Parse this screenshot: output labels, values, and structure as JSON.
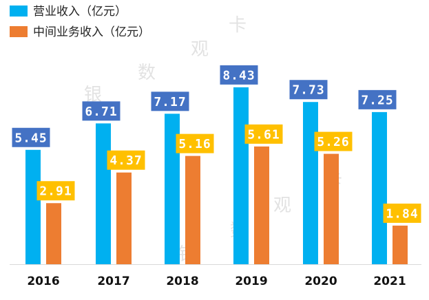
{
  "chart_data": {
    "type": "bar",
    "title": "",
    "xlabel": "",
    "ylabel": "",
    "ylim": [
      0,
      10
    ],
    "categories": [
      "2016",
      "2017",
      "2018",
      "2019",
      "2020",
      "2021"
    ],
    "series": [
      {
        "name": "营业收入（亿元）",
        "values": [
          5.45,
          6.71,
          7.17,
          8.43,
          7.73,
          7.25
        ],
        "labels": [
          "5.45",
          "6.71",
          "7.17",
          "8.43",
          "7.73",
          "7.25"
        ],
        "color": "#00b0f0",
        "label_bg": "#4472c4",
        "label_fg": "#ffffff"
      },
      {
        "name": "中间业务收入（亿元）",
        "values": [
          2.91,
          4.37,
          5.16,
          5.61,
          5.26,
          1.84
        ],
        "labels": [
          "2.91",
          "4.37",
          "5.16",
          "5.61",
          "5.26",
          "1.84"
        ],
        "color": "#ed7d31",
        "label_bg": "#ffc000",
        "label_fg": "#ffffff"
      }
    ],
    "legend": "top-left",
    "grid": false
  },
  "watermark": {
    "upper": [
      "银",
      "数",
      "观",
      "卡"
    ],
    "lower": [
      "银",
      "数",
      "观",
      "卡"
    ]
  },
  "colors": {
    "axis": "#d9d9d9"
  }
}
